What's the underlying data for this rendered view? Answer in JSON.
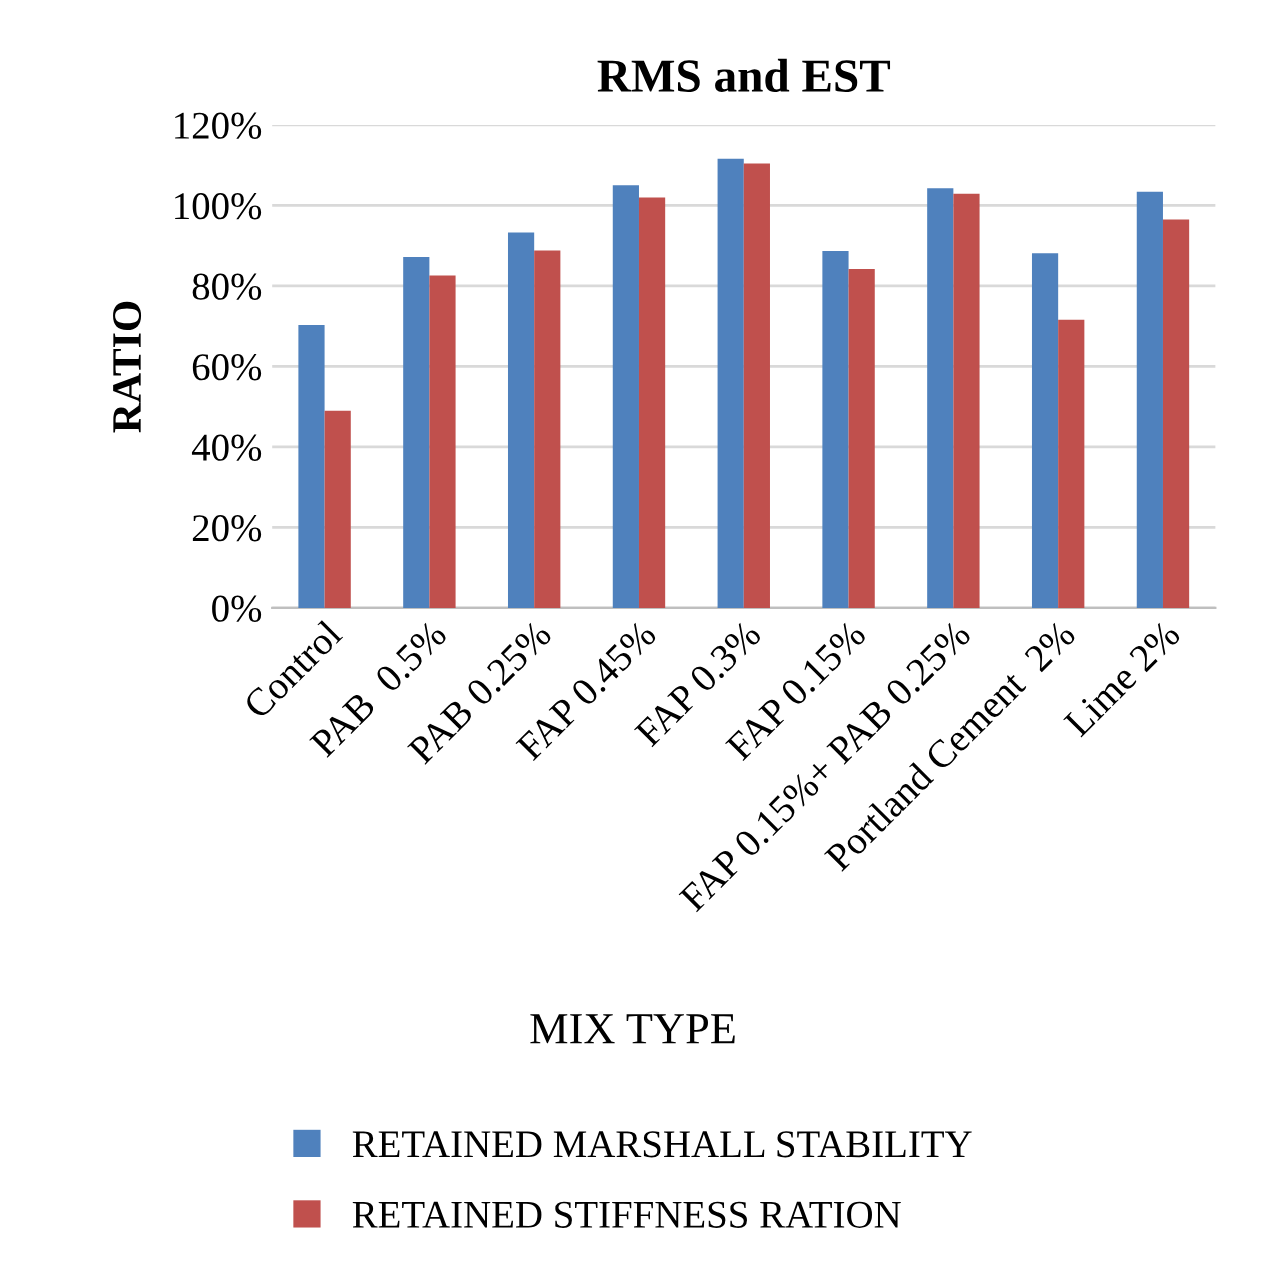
{
  "chart_data": {
    "type": "bar",
    "title": "RMS and EST",
    "xlabel": "MIX TYPE",
    "ylabel": "RATIO",
    "categories": [
      "Control",
      "PAB  0.5%",
      "PAB 0.25%",
      "FAP 0.45%",
      "FAP 0.3%",
      "FAP 0.15%",
      "FAP 0.15%+ PAB 0.25%",
      "Portland Cement  2%",
      "Lime 2%"
    ],
    "series": [
      {
        "name": "RETAINED MARSHALL STABILITY",
        "color": "#4f81bd",
        "values": [
          70.3,
          87.2,
          93.3,
          105.0,
          111.6,
          88.7,
          104.3,
          88.1,
          103.4
        ]
      },
      {
        "name": "RETAINED STIFFNESS RATION",
        "color": "#c0504d",
        "values": [
          49.0,
          82.6,
          88.8,
          102.0,
          110.4,
          84.2,
          102.9,
          71.6,
          96.5
        ]
      }
    ],
    "ylim": [
      0,
      120
    ],
    "yticks": [
      {
        "value": 0,
        "label": "0%"
      },
      {
        "value": 20,
        "label": "20%"
      },
      {
        "value": 40,
        "label": "40%"
      },
      {
        "value": 60,
        "label": "60%"
      },
      {
        "value": 80,
        "label": "80%"
      },
      {
        "value": 100,
        "label": "100%"
      },
      {
        "value": 120,
        "label": "120%"
      }
    ],
    "grid": "y",
    "legend": "bottom"
  }
}
